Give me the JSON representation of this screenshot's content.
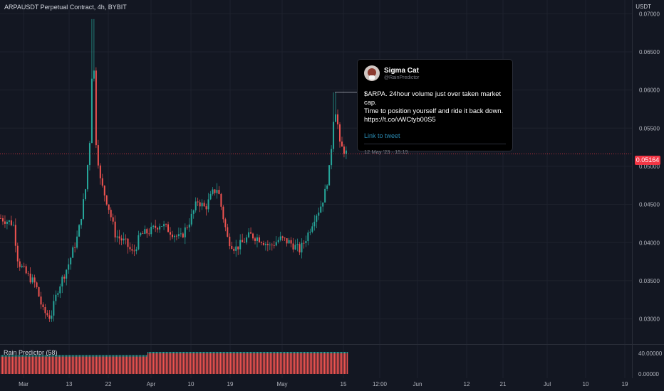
{
  "header": {
    "symbol_title": "ARPAUSDT Perpetual Contract, 4h, BYBIT"
  },
  "price_axis": {
    "unit": "USDT",
    "current_price_label": "0.05164"
  },
  "indicator": {
    "label": "Rain Predictor (58)",
    "ticks": [
      "40.00000",
      "0.00000"
    ]
  },
  "tweet": {
    "author_name": "Sigma Cat",
    "author_handle": "@RainPredictor",
    "text": "$ARPA. 24hour volume just over taken market cap.\nTime to position yourself and ride it back down.\nhttps://t.co/vWCtyb00S5",
    "link_label": "Link to tweet",
    "timestamp": "12 May '23 · 15:15"
  },
  "colors": {
    "up": "#26a69a",
    "down": "#ef5350",
    "background": "#131722",
    "price_line": "#f23645"
  },
  "chart_data": {
    "type": "candlestick",
    "title": "ARPAUSDT Perpetual Contract, 4h, BYBIT",
    "ylabel": "USDT",
    "ylim": [
      0.0267,
      0.0718
    ],
    "y_ticks": [
      "0.07000",
      "0.06500",
      "0.06000",
      "0.05500",
      "0.05000",
      "0.04500",
      "0.04000",
      "0.03500",
      "0.03000"
    ],
    "x_ticks": [
      "Mar",
      "13",
      "22",
      "Apr",
      "10",
      "19",
      "May",
      "15",
      "12:00",
      "Jun",
      "12",
      "21",
      "Jul",
      "10",
      "19"
    ],
    "last_price": 0.05164,
    "path": [
      [
        0,
        0.0432
      ],
      [
        0.05,
        0.0425
      ],
      [
        0.07,
        0.0375
      ],
      [
        0.1,
        0.036
      ],
      [
        0.14,
        0.0345
      ],
      [
        0.17,
        0.031
      ],
      [
        0.2,
        0.0302
      ],
      [
        0.23,
        0.034
      ],
      [
        0.27,
        0.037
      ],
      [
        0.31,
        0.041
      ],
      [
        0.34,
        0.047
      ],
      [
        0.36,
        0.0545
      ],
      [
        0.37,
        0.068
      ],
      [
        0.38,
        0.054
      ],
      [
        0.4,
        0.048
      ],
      [
        0.43,
        0.045
      ],
      [
        0.46,
        0.041
      ],
      [
        0.5,
        0.04
      ],
      [
        0.53,
        0.0385
      ],
      [
        0.56,
        0.041
      ],
      [
        0.6,
        0.0415
      ],
      [
        0.64,
        0.0425
      ],
      [
        0.68,
        0.0415
      ],
      [
        0.72,
        0.0405
      ],
      [
        0.76,
        0.043
      ],
      [
        0.79,
        0.0455
      ],
      [
        0.82,
        0.0445
      ],
      [
        0.85,
        0.0465
      ],
      [
        0.87,
        0.0472
      ],
      [
        0.89,
        0.0437
      ],
      [
        0.91,
        0.0405
      ],
      [
        0.94,
        0.0392
      ],
      [
        0.97,
        0.04
      ],
      [
        1.0,
        0.041
      ],
      [
        1.04,
        0.0405
      ],
      [
        1.08,
        0.0395
      ],
      [
        1.12,
        0.0405
      ],
      [
        1.16,
        0.04
      ],
      [
        1.2,
        0.039
      ],
      [
        1.23,
        0.041
      ],
      [
        1.26,
        0.0435
      ],
      [
        1.28,
        0.0445
      ],
      [
        1.3,
        0.0465
      ],
      [
        1.32,
        0.05
      ],
      [
        1.335,
        0.0565
      ],
      [
        1.345,
        0.0575
      ],
      [
        1.36,
        0.0527
      ],
      [
        1.39,
        0.0516
      ]
    ],
    "indicator_series": {
      "name": "Rain Predictor (58)",
      "ylim": [
        0,
        40
      ],
      "value_early": 35,
      "value_late": 40
    }
  }
}
